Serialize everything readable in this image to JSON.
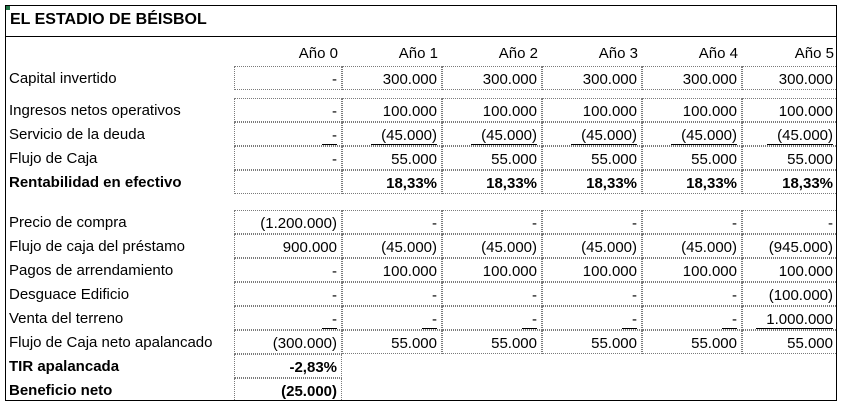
{
  "title": "EL ESTADIO DE BÉISBOL",
  "headers": [
    "Año 0",
    "Año 1",
    "Año 2",
    "Año 3",
    "Año 4",
    "Año 5"
  ],
  "section1": [
    {
      "label": "Capital invertido",
      "values": [
        "-",
        "300.000",
        "300.000",
        "300.000",
        "300.000",
        "300.000"
      ],
      "bold": false,
      "underline": false
    }
  ],
  "section2": [
    {
      "label": "Ingresos netos operativos",
      "values": [
        "-",
        "100.000",
        "100.000",
        "100.000",
        "100.000",
        "100.000"
      ],
      "bold": false,
      "underline": false
    },
    {
      "label": "Servicio de la deuda",
      "values": [
        "-",
        "(45.000)",
        "(45.000)",
        "(45.000)",
        "(45.000)",
        "(45.000)"
      ],
      "bold": false,
      "underline": true
    },
    {
      "label": "Flujo de Caja",
      "values": [
        "-",
        "55.000",
        "55.000",
        "55.000",
        "55.000",
        "55.000"
      ],
      "bold": false,
      "underline": false
    },
    {
      "label": "Rentabilidad en efectivo",
      "values": [
        "",
        "18,33%",
        "18,33%",
        "18,33%",
        "18,33%",
        "18,33%"
      ],
      "bold": true,
      "underline": false
    }
  ],
  "section3": [
    {
      "label": "Precio de compra",
      "values": [
        "(1.200.000)",
        "-",
        "-",
        "-",
        "-",
        "-"
      ],
      "bold": false,
      "underline": false
    },
    {
      "label": "Flujo de caja del préstamo",
      "values": [
        "900.000",
        "(45.000)",
        "(45.000)",
        "(45.000)",
        "(45.000)",
        "(945.000)"
      ],
      "bold": false,
      "underline": false
    },
    {
      "label": "Pagos de arrendamiento",
      "values": [
        "-",
        "100.000",
        "100.000",
        "100.000",
        "100.000",
        "100.000"
      ],
      "bold": false,
      "underline": false
    },
    {
      "label": "Desguace Edificio",
      "values": [
        "-",
        "-",
        "-",
        "-",
        "-",
        "(100.000)"
      ],
      "bold": false,
      "underline": false
    },
    {
      "label": "Venta del terreno",
      "values": [
        "-",
        "-",
        "-",
        "-",
        "-",
        "1.000.000"
      ],
      "bold": false,
      "underline": true
    },
    {
      "label": "Flujo de Caja neto apalancado",
      "values": [
        "(300.000)",
        "55.000",
        "55.000",
        "55.000",
        "55.000",
        "55.000"
      ],
      "bold": false,
      "underline": false
    },
    {
      "label": "TIR apalancada",
      "values": [
        "-2,83%"
      ],
      "bold": true,
      "underline": false
    },
    {
      "label": "Beneficio neto",
      "values": [
        "(25.000)"
      ],
      "bold": true,
      "underline": false
    }
  ]
}
